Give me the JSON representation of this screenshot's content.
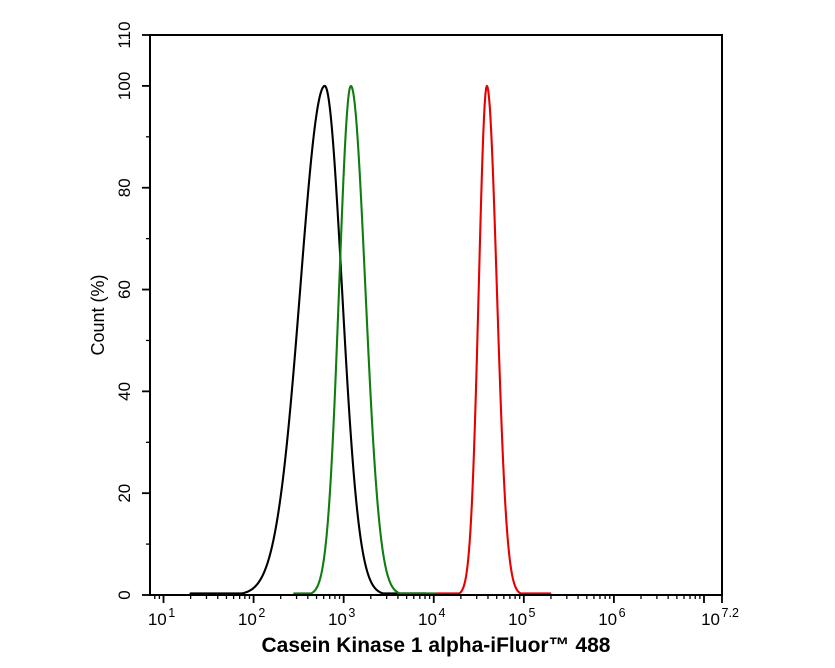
{
  "figure": {
    "background": "#ffffff",
    "axis_color": "#000000"
  },
  "chart_data": {
    "type": "line",
    "kind": "flow-cytometry-histogram-overlay",
    "title": "",
    "xlabel": "Casein Kinase 1 alpha-iFluor™ 488",
    "ylabel": "Count  (%)",
    "x_scale": "log10",
    "x_tick_base": "10",
    "x_range_log10": [
      0.85,
      7.2
    ],
    "x_major_ticks": [
      {
        "log10": 1,
        "exponent": "1"
      },
      {
        "log10": 2,
        "exponent": "2"
      },
      {
        "log10": 3,
        "exponent": "3"
      },
      {
        "log10": 4,
        "exponent": "4"
      },
      {
        "log10": 5,
        "exponent": "5"
      },
      {
        "log10": 6,
        "exponent": "6"
      },
      {
        "log10": 7,
        "exponent": ""
      },
      {
        "log10": 7.2,
        "exponent": "7.2"
      }
    ],
    "y_range": [
      0,
      110
    ],
    "y_major_ticks": [
      0,
      20,
      40,
      60,
      80,
      100,
      110
    ],
    "y_minor_ticks": [
      10,
      30,
      50,
      70,
      90
    ],
    "grid": false,
    "legend": "none",
    "series": [
      {
        "name": "black-curve",
        "color": "#000000",
        "peak_height": 100,
        "peak_center_log10": 2.79,
        "peak_x_value": 620,
        "sigma_left_log10": 0.27,
        "sigma_right_log10": 0.19,
        "draw_range_log10": [
          1.3,
          3.92
        ]
      },
      {
        "name": "green-curve",
        "color": "#0f7d0f",
        "peak_height": 100,
        "peak_center_log10": 3.08,
        "peak_x_value": 1200,
        "sigma_left_log10": 0.13,
        "sigma_right_log10": 0.16,
        "draw_range_log10": [
          2.45,
          4.02
        ]
      },
      {
        "name": "red-curve",
        "color": "#e60000",
        "peak_height": 100,
        "peak_center_log10": 4.59,
        "peak_x_value": 39000,
        "sigma_left_log10": 0.09,
        "sigma_right_log10": 0.11,
        "draw_range_log10": [
          4.03,
          5.3
        ]
      }
    ]
  }
}
